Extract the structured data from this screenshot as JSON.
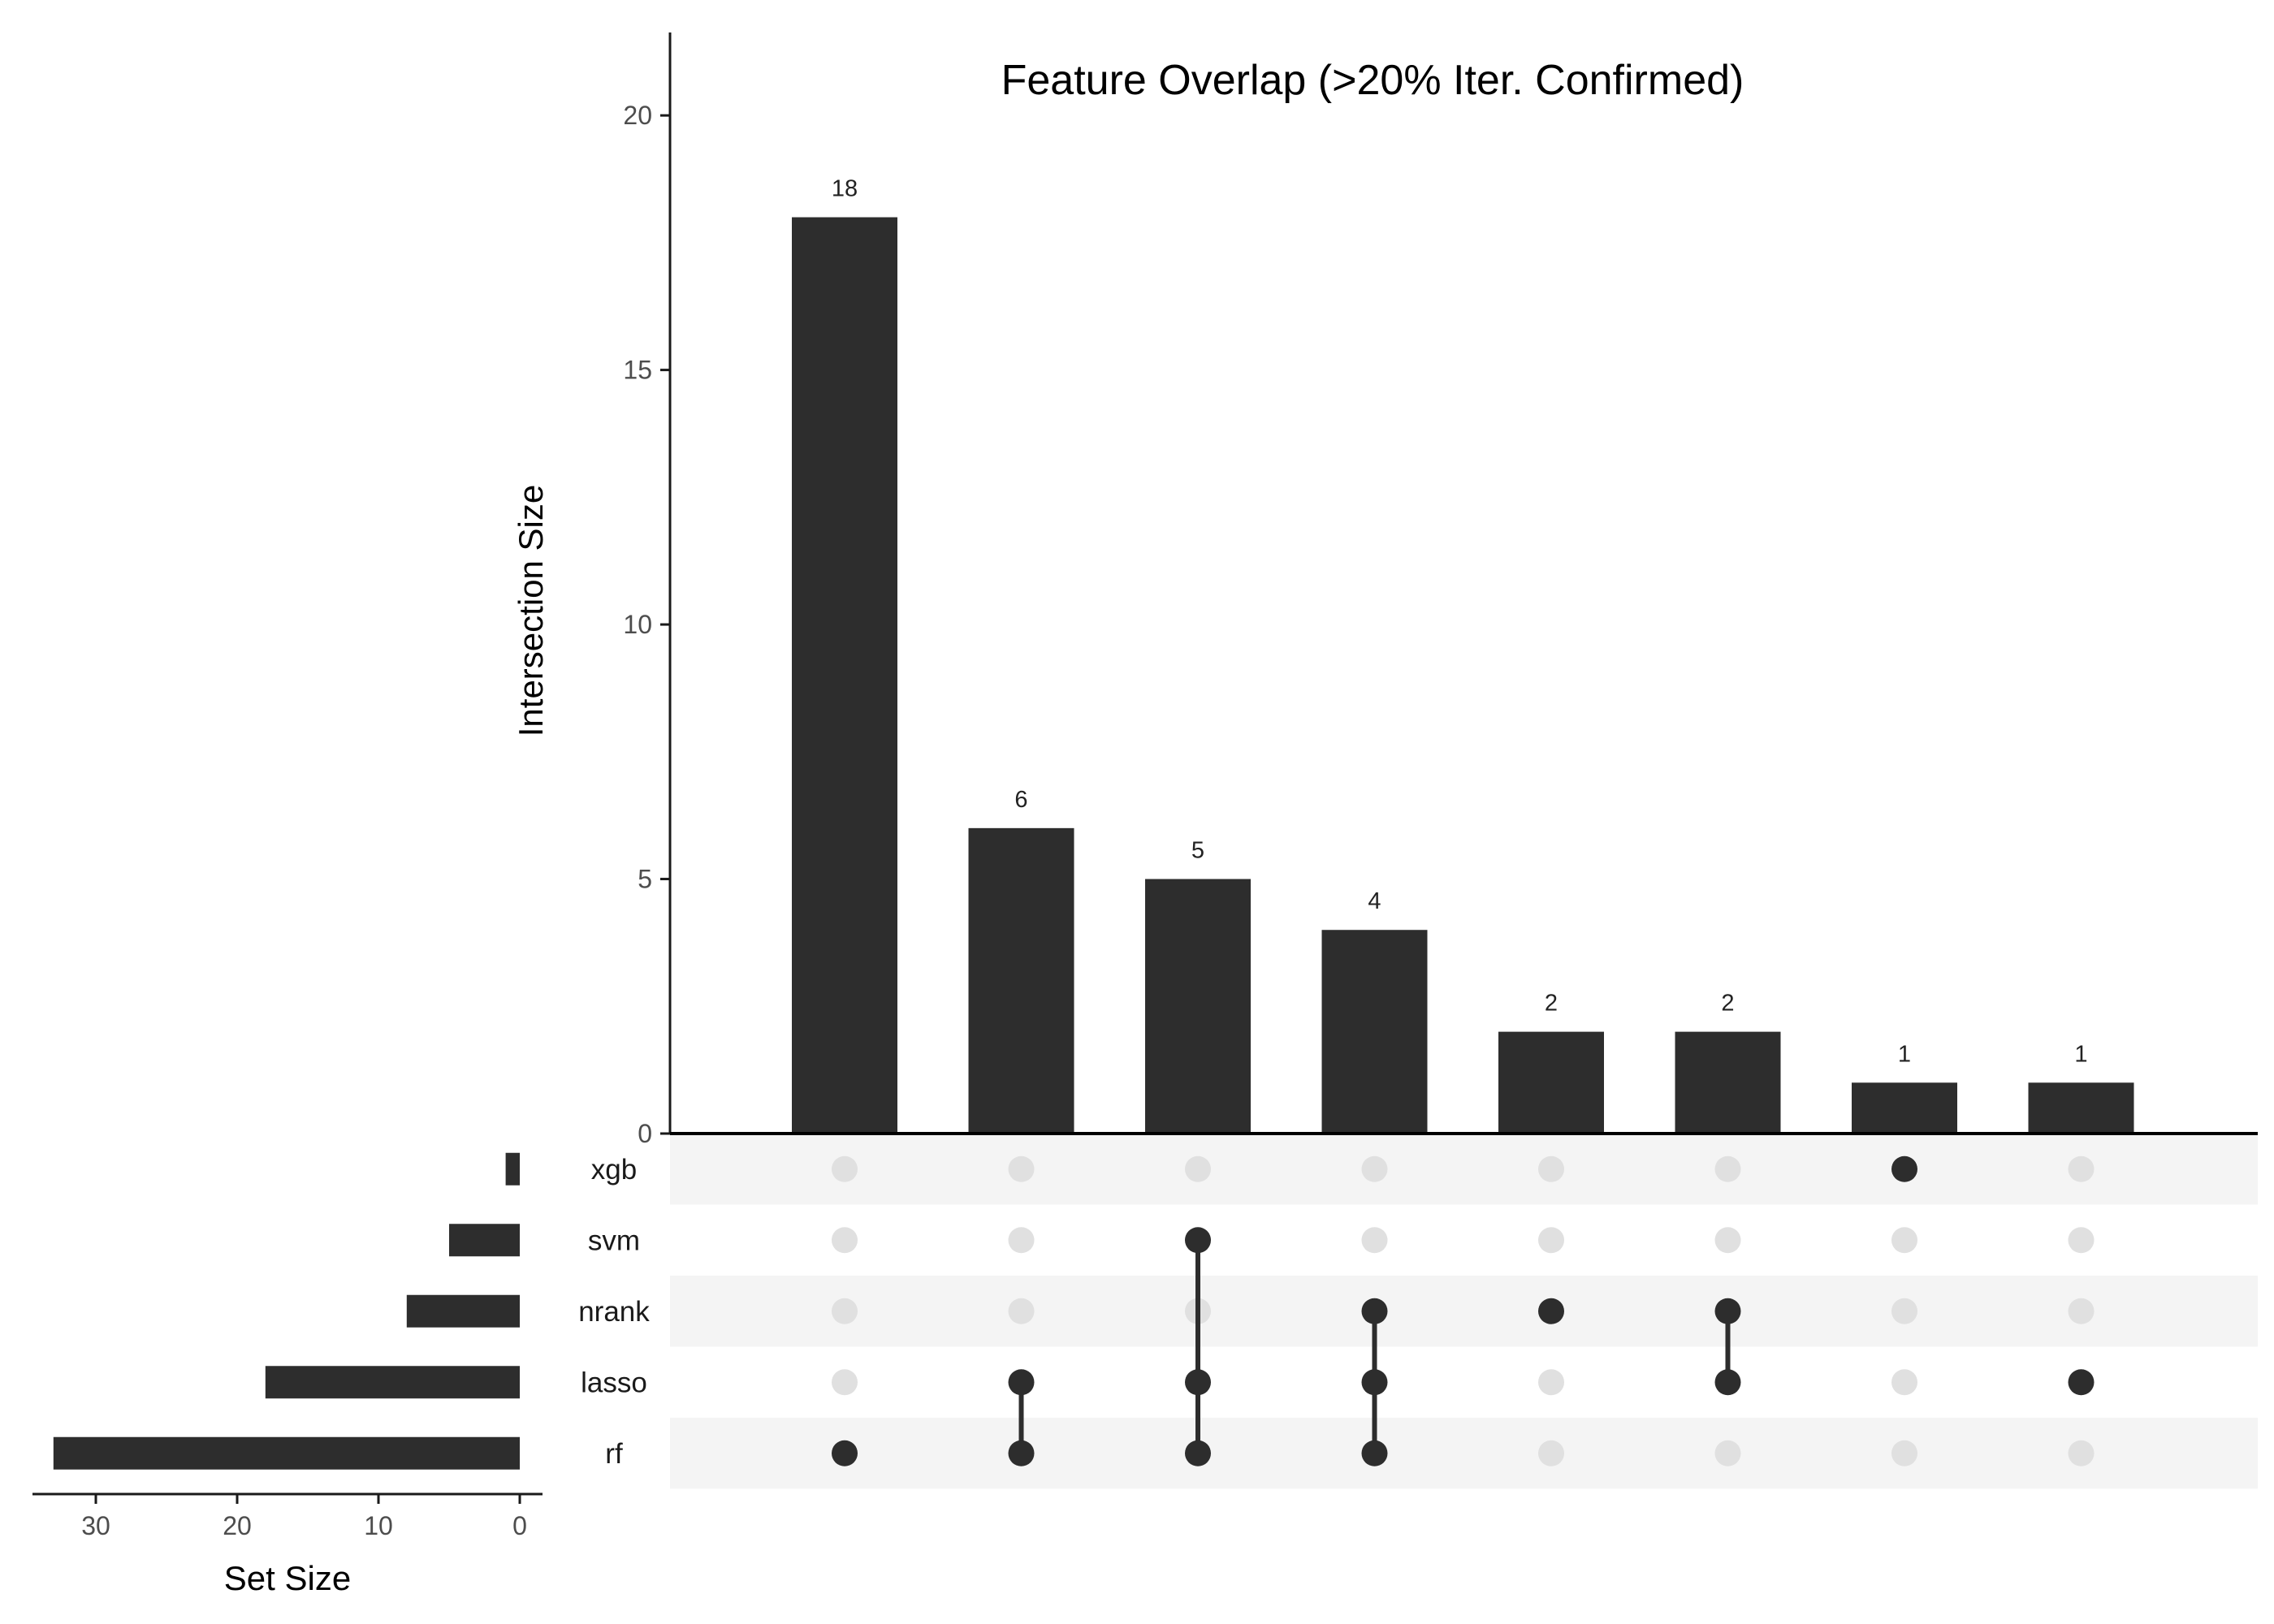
{
  "chart_data": {
    "type": "upset",
    "title": "Feature Overlap (>20% Iter. Confirmed)",
    "intersections": {
      "ylabel": "Intersection Size",
      "ylim": [
        0,
        20.8
      ],
      "yticks": [
        0,
        5,
        10,
        15,
        20
      ],
      "values": [
        18,
        6,
        5,
        4,
        2,
        2,
        1,
        1
      ],
      "bar_labels": [
        "18",
        "6",
        "5",
        "4",
        "2",
        "2",
        "1",
        "1"
      ],
      "memberships": [
        [
          "rf"
        ],
        [
          "lasso",
          "rf"
        ],
        [
          "svm",
          "lasso",
          "rf"
        ],
        [
          "nrank",
          "lasso",
          "rf"
        ],
        [
          "nrank"
        ],
        [
          "nrank",
          "lasso"
        ],
        [
          "xgb"
        ],
        [
          "lasso"
        ]
      ]
    },
    "sets": {
      "names": [
        "xgb",
        "svm",
        "nrank",
        "lasso",
        "rf"
      ],
      "sizes": [
        1,
        5,
        8,
        18,
        33
      ],
      "xlabel": "Set Size",
      "xlim": [
        0,
        35
      ],
      "xticks": [
        30,
        20,
        10,
        0
      ]
    },
    "colors": {
      "bar": "#2d2d2d",
      "dot_active": "#2d2d2d",
      "dot_inactive": "#e0e0e0",
      "stripe": "#f4f4f4"
    }
  }
}
